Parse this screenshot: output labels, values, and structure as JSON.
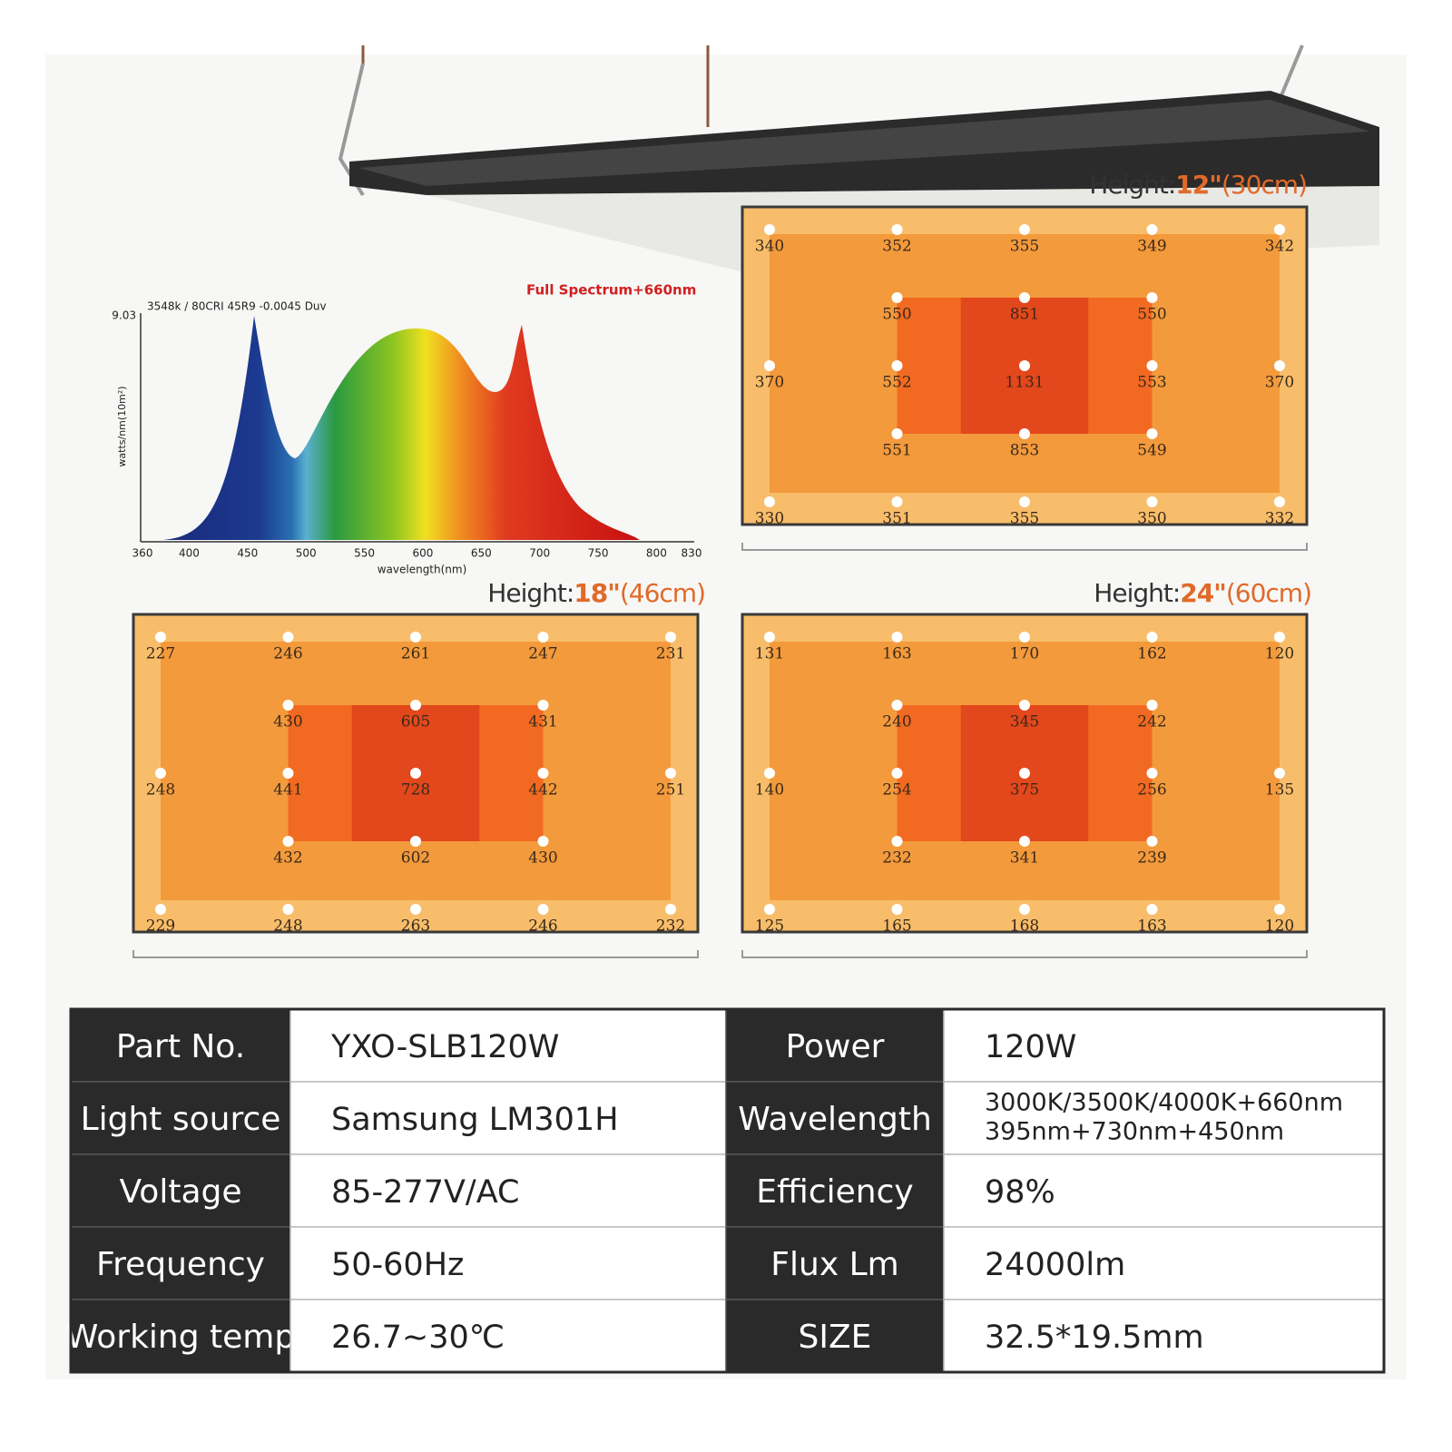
{
  "spectrum": {
    "title": "Full Spectrum+660nm",
    "subtitle": "3548k / 80CRI 45R9 -0.0045 Duv",
    "y_max_label": "9.03",
    "y_label": "watts/nm(10m²)",
    "x_label": "wavelength(nm)",
    "x_ticks": [
      360,
      400,
      450,
      500,
      550,
      600,
      650,
      700,
      750,
      800,
      830
    ]
  },
  "maps": [
    {
      "label": "Height:",
      "height": "12\"",
      "metric": "(30cm)",
      "rows": [
        [
          340,
          352,
          355,
          349,
          342
        ],
        [
          550,
          851,
          550
        ],
        [
          370,
          552,
          1131,
          553,
          370
        ],
        [
          551,
          853,
          549
        ],
        [
          330,
          351,
          355,
          350,
          332
        ]
      ]
    },
    {
      "label": "Height:",
      "height": "18\"",
      "metric": "(46cm)",
      "rows": [
        [
          227,
          246,
          261,
          247,
          231
        ],
        [
          430,
          605,
          431
        ],
        [
          248,
          441,
          728,
          442,
          251
        ],
        [
          432,
          602,
          430
        ],
        [
          229,
          248,
          263,
          246,
          232
        ]
      ]
    },
    {
      "label": "Height:",
      "height": "24\"",
      "metric": "(60cm)",
      "rows": [
        [
          131,
          163,
          170,
          162,
          120
        ],
        [
          240,
          345,
          242
        ],
        [
          140,
          254,
          375,
          256,
          135
        ],
        [
          232,
          341,
          239
        ],
        [
          125,
          165,
          168,
          163,
          120
        ]
      ]
    }
  ],
  "table": {
    "rows": [
      [
        "Part No.",
        "YXO-SLB120W",
        "Power",
        "120W"
      ],
      [
        "Light source",
        "Samsung LM301H",
        "Wavelength",
        [
          "3000K/3500K/4000K+660nm",
          "395nm+730nm+450nm"
        ]
      ],
      [
        "Voltage",
        "85-277V/AC",
        "Efficiency",
        "98%"
      ],
      [
        "Frequency",
        "50-60Hz",
        "Flux Lm",
        "24000lm"
      ],
      [
        "Working temp",
        "26.7~30℃",
        "SIZE",
        "32.5*19.5mm"
      ]
    ]
  }
}
